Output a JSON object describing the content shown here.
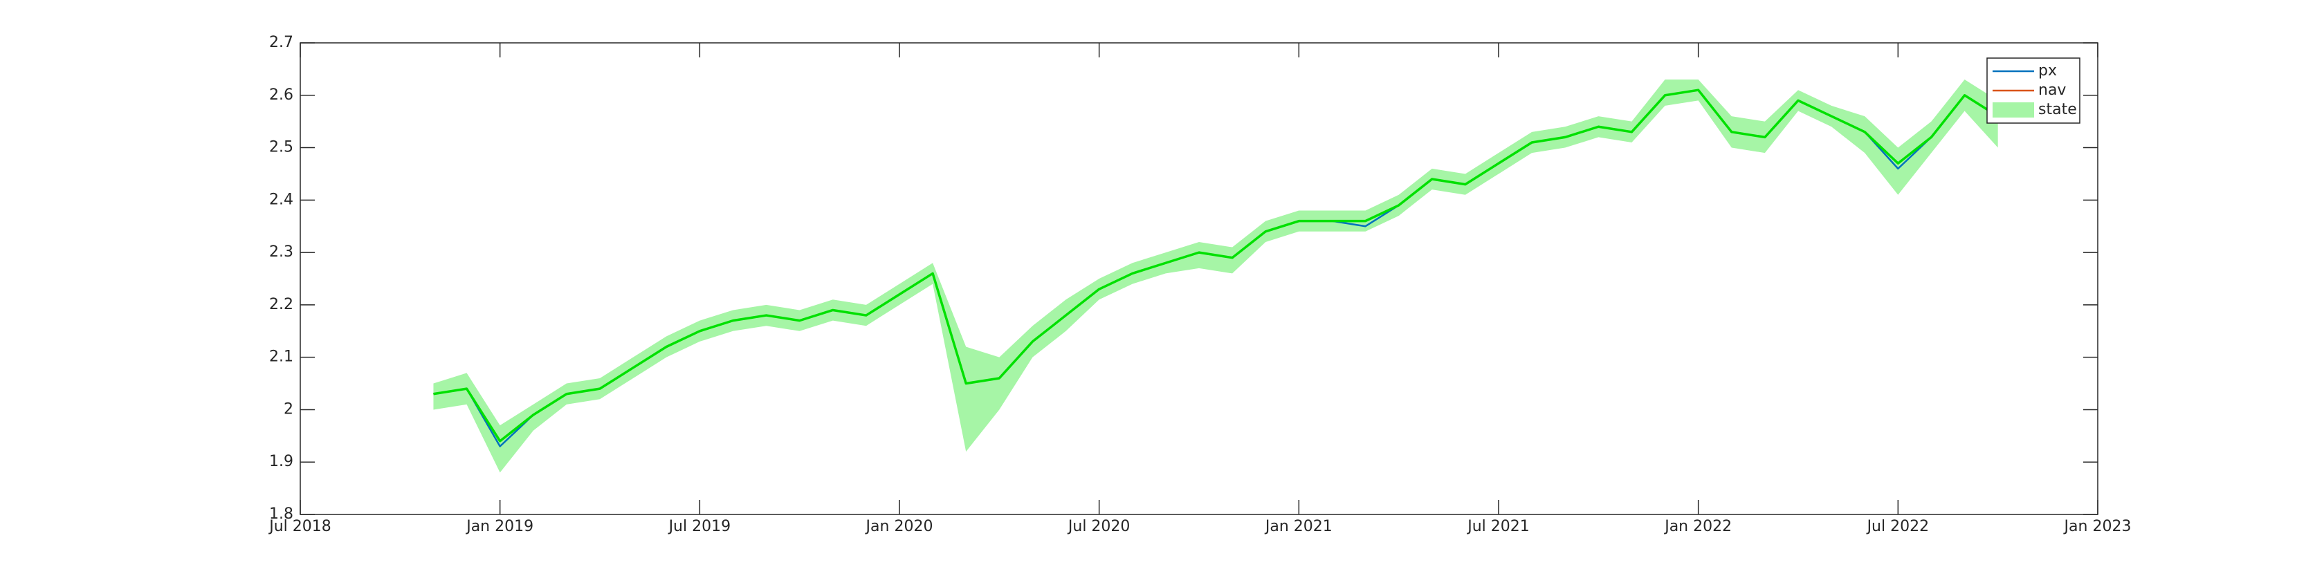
{
  "chart_data": {
    "type": "line",
    "x": [
      "2018-11",
      "2018-12",
      "2019-01",
      "2019-02",
      "2019-03",
      "2019-04",
      "2019-05",
      "2019-06",
      "2019-07",
      "2019-08",
      "2019-09",
      "2019-10",
      "2019-11",
      "2019-12",
      "2020-01",
      "2020-02",
      "2020-03",
      "2020-04",
      "2020-05",
      "2020-06",
      "2020-07",
      "2020-08",
      "2020-09",
      "2020-10",
      "2020-11",
      "2020-12",
      "2021-01",
      "2021-02",
      "2021-03",
      "2021-04",
      "2021-05",
      "2021-06",
      "2021-07",
      "2021-08",
      "2021-09",
      "2021-10",
      "2021-11",
      "2021-12",
      "2022-01",
      "2022-02",
      "2022-03",
      "2022-04",
      "2022-05",
      "2022-06",
      "2022-07",
      "2022-08",
      "2022-09",
      "2022-10"
    ],
    "series": [
      {
        "name": "px",
        "color": "#0072bd",
        "values": [
          2.03,
          2.04,
          1.93,
          1.99,
          2.03,
          2.04,
          2.08,
          2.12,
          2.15,
          2.17,
          2.18,
          2.17,
          2.19,
          2.18,
          2.22,
          2.26,
          2.05,
          2.06,
          2.13,
          2.18,
          2.23,
          2.26,
          2.28,
          2.3,
          2.29,
          2.34,
          2.36,
          2.36,
          2.35,
          2.39,
          2.44,
          2.43,
          2.47,
          2.51,
          2.52,
          2.54,
          2.53,
          2.6,
          2.61,
          2.53,
          2.52,
          2.59,
          2.56,
          2.53,
          2.46,
          2.52,
          2.6,
          2.56
        ]
      },
      {
        "name": "nav",
        "color": "#d95319",
        "values": [
          2.03,
          2.04,
          1.94,
          1.99,
          2.03,
          2.04,
          2.08,
          2.12,
          2.15,
          2.17,
          2.18,
          2.17,
          2.19,
          2.18,
          2.22,
          2.26,
          2.05,
          2.06,
          2.13,
          2.18,
          2.23,
          2.26,
          2.28,
          2.3,
          2.29,
          2.34,
          2.36,
          2.36,
          2.36,
          2.39,
          2.44,
          2.43,
          2.47,
          2.51,
          2.52,
          2.54,
          2.53,
          2.6,
          2.61,
          2.53,
          2.52,
          2.59,
          2.56,
          2.53,
          2.47,
          2.52,
          2.6,
          2.56
        ]
      },
      {
        "name": "state",
        "color": "#00e000",
        "band_color": "#a6f5a6",
        "values": [
          2.03,
          2.04,
          1.94,
          1.99,
          2.03,
          2.04,
          2.08,
          2.12,
          2.15,
          2.17,
          2.18,
          2.17,
          2.19,
          2.18,
          2.22,
          2.26,
          2.05,
          2.06,
          2.13,
          2.18,
          2.23,
          2.26,
          2.28,
          2.3,
          2.29,
          2.34,
          2.36,
          2.36,
          2.36,
          2.39,
          2.44,
          2.43,
          2.47,
          2.51,
          2.52,
          2.54,
          2.53,
          2.6,
          2.61,
          2.53,
          2.52,
          2.59,
          2.56,
          2.53,
          2.47,
          2.52,
          2.6,
          2.56
        ],
        "upper": [
          2.05,
          2.07,
          1.97,
          2.01,
          2.05,
          2.06,
          2.1,
          2.14,
          2.17,
          2.19,
          2.2,
          2.19,
          2.21,
          2.2,
          2.24,
          2.28,
          2.12,
          2.1,
          2.16,
          2.21,
          2.25,
          2.28,
          2.3,
          2.32,
          2.31,
          2.36,
          2.38,
          2.38,
          2.38,
          2.41,
          2.46,
          2.45,
          2.49,
          2.53,
          2.54,
          2.56,
          2.55,
          2.63,
          2.63,
          2.56,
          2.55,
          2.61,
          2.58,
          2.56,
          2.5,
          2.55,
          2.63,
          2.59
        ],
        "lower": [
          2.0,
          2.01,
          1.88,
          1.96,
          2.01,
          2.02,
          2.06,
          2.1,
          2.13,
          2.15,
          2.16,
          2.15,
          2.17,
          2.16,
          2.2,
          2.24,
          1.92,
          2.0,
          2.1,
          2.15,
          2.21,
          2.24,
          2.26,
          2.27,
          2.26,
          2.32,
          2.34,
          2.34,
          2.34,
          2.37,
          2.42,
          2.41,
          2.45,
          2.49,
          2.5,
          2.52,
          2.51,
          2.58,
          2.59,
          2.5,
          2.49,
          2.57,
          2.54,
          2.49,
          2.41,
          2.49,
          2.57,
          2.5
        ]
      }
    ],
    "xlim": [
      "2018-07",
      "2023-01"
    ],
    "xticks": [
      {
        "value": "2018-07",
        "label": "Jul 2018"
      },
      {
        "value": "2019-01",
        "label": "Jan 2019"
      },
      {
        "value": "2019-07",
        "label": "Jul 2019"
      },
      {
        "value": "2020-01",
        "label": "Jan 2020"
      },
      {
        "value": "2020-07",
        "label": "Jul 2020"
      },
      {
        "value": "2021-01",
        "label": "Jan 2021"
      },
      {
        "value": "2021-07",
        "label": "Jul 2021"
      },
      {
        "value": "2022-01",
        "label": "Jan 2022"
      },
      {
        "value": "2022-07",
        "label": "Jul 2022"
      },
      {
        "value": "2023-01",
        "label": "Jan 2023"
      }
    ],
    "ylim": [
      1.8,
      2.7
    ],
    "yticks": [
      1.8,
      1.9,
      2,
      2.1,
      2.2,
      2.3,
      2.4,
      2.5,
      2.6,
      2.7
    ],
    "legend": "top-right"
  }
}
